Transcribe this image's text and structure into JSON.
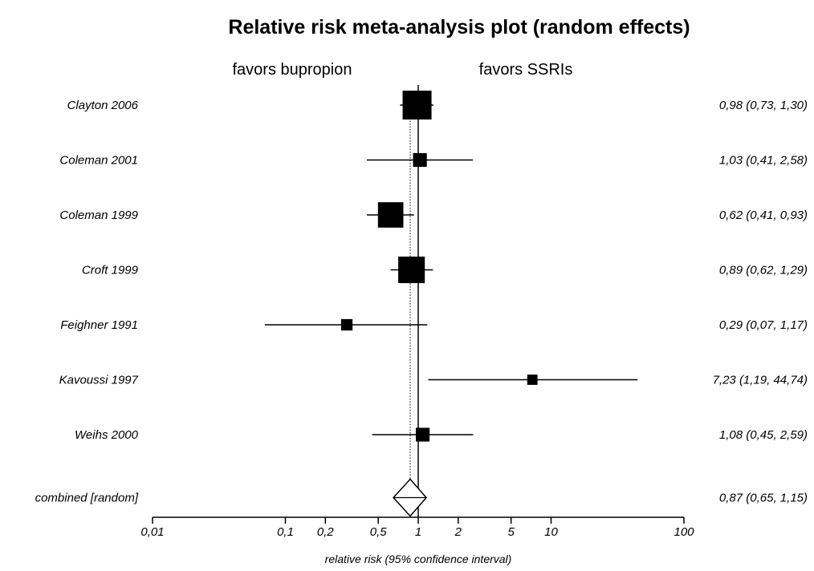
{
  "chart_data": {
    "type": "forest",
    "title": "Relative risk meta-analysis plot (random effects)",
    "favors_left": "favors bupropion",
    "favors_right": "favors SSRIs",
    "xlabel": "relative risk (95% confidence interval)",
    "x_scale": "log",
    "xlim": [
      0.01,
      100
    ],
    "x_ticks": [
      {
        "value": 0.01,
        "label": "0,01"
      },
      {
        "value": 0.1,
        "label": "0,1"
      },
      {
        "value": 0.2,
        "label": "0,2"
      },
      {
        "value": 0.5,
        "label": "0,5"
      },
      {
        "value": 1,
        "label": "1"
      },
      {
        "value": 2,
        "label": "2"
      },
      {
        "value": 5,
        "label": "5"
      },
      {
        "value": 10,
        "label": "10"
      },
      {
        "value": 100,
        "label": "100"
      }
    ],
    "reference_line": 1,
    "studies": [
      {
        "name": "Clayton 2006",
        "rr": 0.98,
        "low": 0.73,
        "high": 1.3,
        "label": "0,98 (0,73, 1,30)",
        "weight": 1.0
      },
      {
        "name": "Coleman 2001",
        "rr": 1.03,
        "low": 0.41,
        "high": 2.58,
        "label": "1,03 (0,41, 2,58)",
        "weight": 0.35
      },
      {
        "name": "Coleman 1999",
        "rr": 0.62,
        "low": 0.41,
        "high": 0.93,
        "label": "0,62 (0,41, 0,93)",
        "weight": 0.85
      },
      {
        "name": "Croft 1999",
        "rr": 0.89,
        "low": 0.62,
        "high": 1.29,
        "label": "0,89 (0,62, 1,29)",
        "weight": 0.9
      },
      {
        "name": "Feighner 1991",
        "rr": 0.29,
        "low": 0.07,
        "high": 1.17,
        "label": "0,29 (0,07, 1,17)",
        "weight": 0.25
      },
      {
        "name": "Kavoussi 1997",
        "rr": 7.23,
        "low": 1.19,
        "high": 44.74,
        "label": "7,23 (1,19, 44,74)",
        "weight": 0.2
      },
      {
        "name": "Weihs 2000",
        "rr": 1.08,
        "low": 0.45,
        "high": 2.59,
        "label": "1,08 (0,45, 2,59)",
        "weight": 0.35
      }
    ],
    "combined": {
      "name": "combined [random]",
      "rr": 0.87,
      "low": 0.65,
      "high": 1.15,
      "label": "0,87 (0,65, 1,15)"
    },
    "colors": {
      "marker": "#000000",
      "line": "#000000",
      "diamond_fill": "#ffffff"
    }
  }
}
